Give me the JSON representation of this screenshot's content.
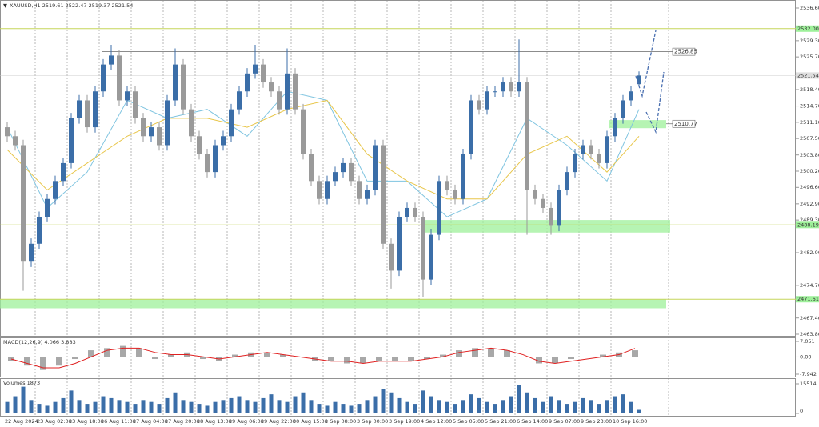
{
  "chart_data": {
    "type": "candlestick",
    "title": "XAUUSD,H1 2519.61 2522.47 2519.37 2521.54",
    "categories": [
      "22 Aug 2024",
      null,
      null,
      null,
      "23 Aug 02:00",
      null,
      null,
      null,
      "23 Aug 18:00",
      null,
      null,
      null,
      "26 Aug 11:00",
      null,
      null,
      null,
      "27 Aug 04:00",
      null,
      null,
      null,
      "27 Aug 20:00",
      null,
      null,
      null,
      "28 Aug 13:00",
      null,
      null,
      null,
      "29 Aug 06:00",
      null,
      null,
      null,
      "29 Aug 22:00",
      null,
      null,
      null,
      "30 Aug 15:00",
      null,
      null,
      null,
      "2 Sep 08:00",
      null,
      null,
      null,
      "3 Sep 00:00",
      null,
      null,
      null,
      "3 Sep 19:00",
      null,
      null,
      null,
      "4 Sep 12:00",
      null,
      null,
      null,
      "5 Sep 05:00",
      null,
      null,
      null,
      "5 Sep 21:00",
      null,
      null,
      null,
      "6 Sep 14:00",
      null,
      null,
      null,
      "9 Sep 07:00",
      null,
      null,
      null,
      "9 Sep 23:00",
      null,
      null,
      null,
      "10 Sep 16:00",
      null,
      null,
      null
    ],
    "open": [
      2510,
      2508,
      2506,
      2480,
      2484,
      2490,
      2494,
      2498,
      2502,
      2512,
      2516,
      2510,
      2518,
      2524,
      2526,
      2516,
      2518,
      2512,
      2508,
      2510,
      2506,
      2516,
      2524,
      2514,
      2508,
      2504,
      2500,
      2506,
      2508,
      2514,
      2518,
      2522,
      2524,
      2520,
      2518,
      2514,
      2522,
      2514,
      2504,
      2498,
      2494,
      2498,
      2500,
      2502,
      2498,
      2494,
      2496,
      2506,
      2484,
      2478,
      2490,
      2492,
      2490,
      2476,
      2486,
      2498,
      2496,
      2494,
      2504,
      2516,
      2514,
      2518,
      2518,
      2520,
      2518,
      2520,
      2496,
      2494,
      2492,
      2488,
      2496,
      2500,
      2504,
      2506,
      2504,
      2502,
      2508,
      2512,
      2516,
      2519.61
    ],
    "high": [
      2511.2,
      2509.2,
      2507.2,
      2485.2,
      2491.2,
      2495.2,
      2499.2,
      2503.2,
      2513.2,
      2517.2,
      2517.2,
      2519.2,
      2525.2,
      2528.4,
      2527.2,
      2519.2,
      2519.2,
      2513.2,
      2511.2,
      2511.2,
      2517.2,
      2527.6,
      2525.2,
      2515.2,
      2509.2,
      2505.2,
      2507.2,
      2509.2,
      2515.2,
      2519.2,
      2523.2,
      2528.4,
      2525.2,
      2521.2,
      2519.2,
      2527.6,
      2523.2,
      2515.2,
      2505.2,
      2499.2,
      2499.2,
      2501.2,
      2503.2,
      2503.2,
      2499.2,
      2497.2,
      2507.2,
      2507.2,
      2485.2,
      2491.2,
      2493.2,
      2493.2,
      2491.2,
      2487.2,
      2499.2,
      2499.2,
      2497.2,
      2505.2,
      2517.2,
      2517.2,
      2519.2,
      2519.2,
      2521.2,
      2521.2,
      2529.6,
      2521.2,
      2497.2,
      2495.2,
      2493.2,
      2497.2,
      2501.2,
      2505.2,
      2507.2,
      2507.2,
      2505.2,
      2509.2,
      2513.2,
      2517.2,
      2519.2,
      2522.47
    ],
    "low": [
      2506.8,
      2504.8,
      2473.5,
      2478.8,
      2482.8,
      2488.8,
      2492.8,
      2496.8,
      2500.8,
      2510.8,
      2508.8,
      2508.8,
      2516.8,
      2522.8,
      2514.8,
      2514.8,
      2510.8,
      2506.8,
      2506.8,
      2504.8,
      2504.8,
      2514.8,
      2512.8,
      2506.8,
      2502.8,
      2498.8,
      2498.8,
      2504.8,
      2506.8,
      2512.8,
      2516.8,
      2520.8,
      2518.8,
      2516.8,
      2512.8,
      2512.8,
      2512.8,
      2502.8,
      2496.8,
      2492.8,
      2492.8,
      2496.8,
      2498.8,
      2496.8,
      2492.8,
      2492.8,
      2494.8,
      2482.8,
      2474.0,
      2476.8,
      2488.8,
      2488.8,
      2472.0,
      2474.8,
      2484.8,
      2494.8,
      2492.8,
      2492.8,
      2502.8,
      2512.8,
      2512.8,
      2516.8,
      2516.8,
      2516.8,
      2516.8,
      2486.0,
      2492.8,
      2490.8,
      2486.0,
      2486.8,
      2494.8,
      2498.8,
      2502.8,
      2502.8,
      2500.8,
      2500.8,
      2506.8,
      2510.8,
      2514.8,
      2519.37
    ],
    "close": [
      2508,
      2506,
      2480,
      2484,
      2490,
      2494,
      2498,
      2502,
      2512,
      2516,
      2510,
      2518,
      2524,
      2526,
      2516,
      2518,
      2512,
      2508,
      2510,
      2506,
      2516,
      2524,
      2514,
      2508,
      2504,
      2500,
      2506,
      2508,
      2514,
      2518,
      2522,
      2524,
      2520,
      2518,
      2514,
      2522,
      2514,
      2504,
      2498,
      2494,
      2498,
      2500,
      2502,
      2498,
      2494,
      2496,
      2506,
      2484,
      2478,
      2490,
      2492,
      2490,
      2476,
      2486,
      2498,
      2496,
      2494,
      2504,
      2516,
      2514,
      2518,
      2518,
      2520,
      2518,
      2520,
      2496,
      2494,
      2492,
      2488,
      2496,
      2500,
      2504,
      2506,
      2504,
      2502,
      2508,
      2512,
      2516,
      2518,
      2521.54
    ],
    "up_color": "#3b6ea8",
    "down_color": "#9a9a9a",
    "moving_averages": [
      {
        "color": "#7fc4e0",
        "x": [
          0,
          5,
          10,
          15,
          20,
          25,
          30,
          35,
          40,
          45,
          50,
          55,
          60,
          65,
          70,
          75,
          79
        ],
        "values": [
          2510,
          2492,
          2500,
          2516,
          2512,
          2514,
          2508,
          2518,
          2516,
          2498,
          2498,
          2490,
          2494,
          2512,
          2506,
          2498,
          2514
        ]
      },
      {
        "color": "#e8c64a",
        "x": [
          0,
          5,
          10,
          15,
          20,
          25,
          30,
          35,
          40,
          45,
          50,
          55,
          60,
          65,
          70,
          75,
          79
        ],
        "values": [
          2505,
          2496,
          2502,
          2508,
          2512,
          2512,
          2510,
          2514,
          2516,
          2504,
          2498,
          2494,
          2494,
          2504,
          2508,
          2500,
          2508
        ]
      }
    ],
    "ylim": [
      2463.8,
      2536.6
    ],
    "yticks": [
      {
        "value": 2536.6,
        "label": "2536.60"
      },
      {
        "value": 2529.3,
        "label": "2529.30"
      },
      {
        "value": 2525.7,
        "label": "2525.70"
      },
      {
        "value": 2518.4,
        "label": "2518.40"
      },
      {
        "value": 2514.7,
        "label": "2514.70"
      },
      {
        "value": 2511.1,
        "label": "2511.10"
      },
      {
        "value": 2507.5,
        "label": "2507.50"
      },
      {
        "value": 2503.8,
        "label": "2503.80"
      },
      {
        "value": 2500.2,
        "label": "2500.20"
      },
      {
        "value": 2496.6,
        "label": "2496.60"
      },
      {
        "value": 2492.9,
        "label": "2492.90"
      },
      {
        "value": 2489.3,
        "label": "2489.30"
      },
      {
        "value": 2482,
        "label": "2482.00"
      },
      {
        "value": 2474.7,
        "label": "2474.70"
      },
      {
        "value": 2467.4,
        "label": "2467.40"
      },
      {
        "value": 2463.8,
        "label": "2463.80"
      }
    ],
    "levels": [
      {
        "value": 2532,
        "label": "2532.00",
        "color": "#c6d65a"
      },
      {
        "value": 2488.19,
        "label": "2488.19",
        "color": "#c6d65a"
      },
      {
        "value": 2471.61,
        "label": "2471.61",
        "color": "#c6d65a"
      }
    ],
    "markers": [
      {
        "value": 2526.85,
        "label": "2526.85"
      },
      {
        "value": 2510.77,
        "label": "2510.77"
      }
    ],
    "last_price": {
      "value": 2521.54,
      "label": "2521.54"
    },
    "zones": [
      {
        "low": 2486.5,
        "high": 2489.3
      },
      {
        "low": 2469.6,
        "high": 2471.6
      },
      {
        "low": 2509.8,
        "high": 2511.6
      }
    ],
    "zone_color": "#9ef09a",
    "macd": {
      "title": "MACD(12,26,9) 4.066 3.883",
      "histogram": [
        -2,
        -4,
        -6,
        -4,
        -1,
        3,
        4,
        5,
        4,
        -1,
        1,
        2,
        -1,
        -2,
        1,
        2,
        2,
        1,
        0,
        -2,
        -2,
        -3,
        -3,
        -2,
        -2,
        -2,
        -1,
        1,
        3,
        4,
        4,
        3,
        0,
        -3,
        -3,
        -1,
        0,
        1,
        2,
        3
      ],
      "signal": [
        -1,
        -3,
        -5,
        -5,
        -3,
        0,
        3,
        4,
        4,
        2,
        1,
        1,
        0,
        -1,
        0,
        1,
        2,
        1,
        0,
        -1,
        -2,
        -2,
        -3,
        -2,
        -2,
        -2,
        -1,
        0,
        2,
        3,
        4,
        3,
        1,
        -2,
        -3,
        -2,
        -1,
        0,
        1,
        3.883
      ],
      "signal_color": "#e02020",
      "hist_color": "#a8a8a8",
      "ylim": [
        -7.942,
        7.051
      ],
      "yticks": [
        {
          "value": 7.051,
          "label": "7.051"
        },
        {
          "value": 0,
          "label": "0.00"
        },
        {
          "value": -7.942,
          "label": "-7.942"
        }
      ]
    },
    "volumes": {
      "title": "Volumes 1873",
      "color": "#3b6ea8",
      "values": [
        6000,
        9000,
        14000,
        7000,
        5000,
        4000,
        6000,
        8000,
        12000,
        7000,
        5000,
        6000,
        9000,
        8000,
        7000,
        6000,
        5000,
        7000,
        6000,
        5000,
        8000,
        11000,
        7000,
        6000,
        5000,
        4000,
        6000,
        7000,
        8000,
        9000,
        7000,
        6000,
        8000,
        10000,
        7000,
        6000,
        9000,
        11000,
        7000,
        5000,
        4000,
        6000,
        5000,
        4000,
        5000,
        7000,
        9000,
        13000,
        11000,
        8000,
        6000,
        5000,
        12000,
        9000,
        7000,
        6000,
        5000,
        7000,
        10000,
        8000,
        6000,
        5000,
        7000,
        9000,
        15000,
        11000,
        8000,
        6000,
        9000,
        7000,
        5000,
        6000,
        8000,
        7000,
        5000,
        7000,
        9000,
        10000,
        6000,
        1873
      ],
      "ylim": [
        0,
        15514
      ],
      "yticks": [
        15514,
        0
      ]
    }
  }
}
